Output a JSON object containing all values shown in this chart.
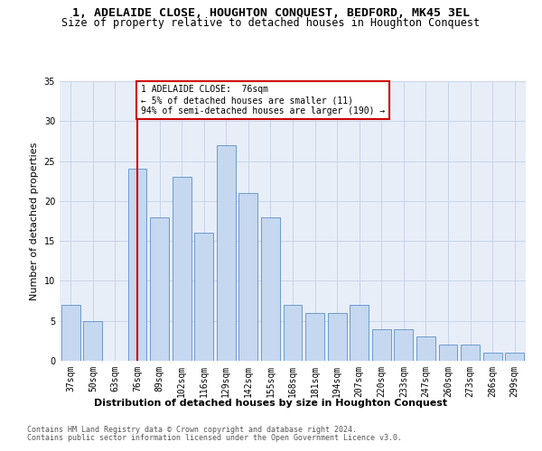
{
  "title1": "1, ADELAIDE CLOSE, HOUGHTON CONQUEST, BEDFORD, MK45 3EL",
  "title2": "Size of property relative to detached houses in Houghton Conquest",
  "xlabel": "Distribution of detached houses by size in Houghton Conquest",
  "ylabel": "Number of detached properties",
  "categories": [
    "37sqm",
    "50sqm",
    "63sqm",
    "76sqm",
    "89sqm",
    "102sqm",
    "116sqm",
    "129sqm",
    "142sqm",
    "155sqm",
    "168sqm",
    "181sqm",
    "194sqm",
    "207sqm",
    "220sqm",
    "233sqm",
    "247sqm",
    "260sqm",
    "273sqm",
    "286sqm",
    "299sqm"
  ],
  "values": [
    7,
    5,
    0,
    24,
    18,
    23,
    16,
    27,
    21,
    18,
    7,
    6,
    6,
    7,
    4,
    4,
    3,
    2,
    2,
    1,
    1
  ],
  "bar_color": "#c5d8f0",
  "bar_edge_color": "#5b8fc9",
  "red_line_index": 3,
  "red_line_label": "1 ADELAIDE CLOSE:  76sqm",
  "annotation_line1": "← 5% of detached houses are smaller (11)",
  "annotation_line2": "94% of semi-detached houses are larger (190) →",
  "annotation_box_color": "#ffffff",
  "annotation_box_edge_color": "#cc0000",
  "ylim": [
    0,
    35
  ],
  "yticks": [
    0,
    5,
    10,
    15,
    20,
    25,
    30,
    35
  ],
  "grid_color": "#c8d4e8",
  "background_color": "#e8eef8",
  "footer1": "Contains HM Land Registry data © Crown copyright and database right 2024.",
  "footer2": "Contains public sector information licensed under the Open Government Licence v3.0.",
  "title1_fontsize": 9.5,
  "title2_fontsize": 8.5,
  "xlabel_fontsize": 8,
  "ylabel_fontsize": 8,
  "tick_fontsize": 7,
  "annotation_fontsize": 7,
  "footer_fontsize": 6
}
